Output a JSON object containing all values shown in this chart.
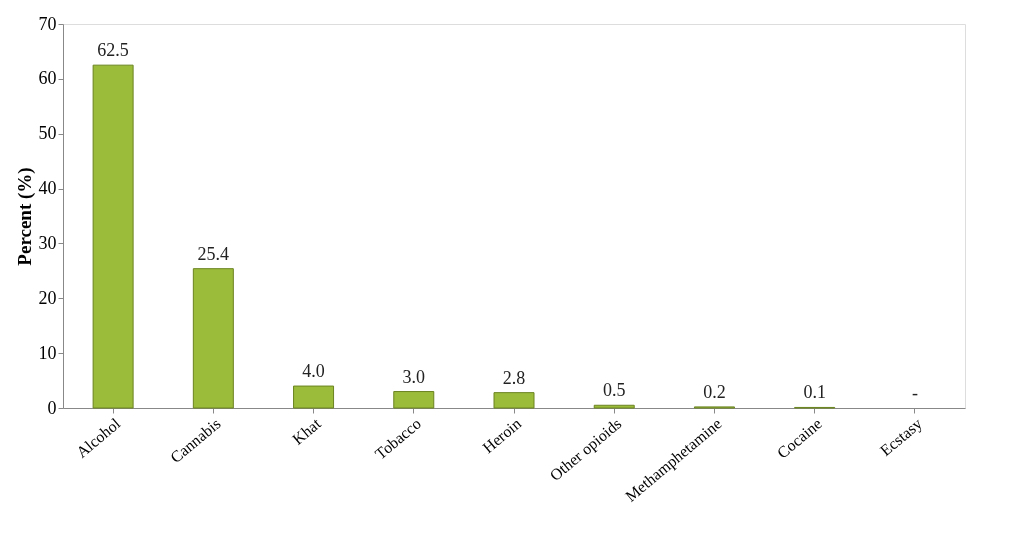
{
  "chart_data": {
    "type": "bar",
    "ylabel": "Percent (%)",
    "categories": [
      "Alcohol",
      "Cannabis",
      "Khat",
      "Tobacco",
      "Heroin",
      "Other opioids",
      "Methamphetamine",
      "Cocaine",
      "Ecstasy"
    ],
    "values": [
      62.5,
      25.4,
      4.0,
      3.0,
      2.8,
      0.5,
      0.2,
      0.1,
      null
    ],
    "value_labels": [
      "62.5",
      "25.4",
      "4.0",
      "3.0",
      "2.8",
      "0.5",
      "0.2",
      "0.1",
      "-"
    ],
    "color": "#9bbb3b",
    "ylim": [
      0,
      70
    ],
    "yticks": [
      0,
      10,
      20,
      30,
      40,
      50,
      60,
      70
    ],
    "grid": false
  }
}
